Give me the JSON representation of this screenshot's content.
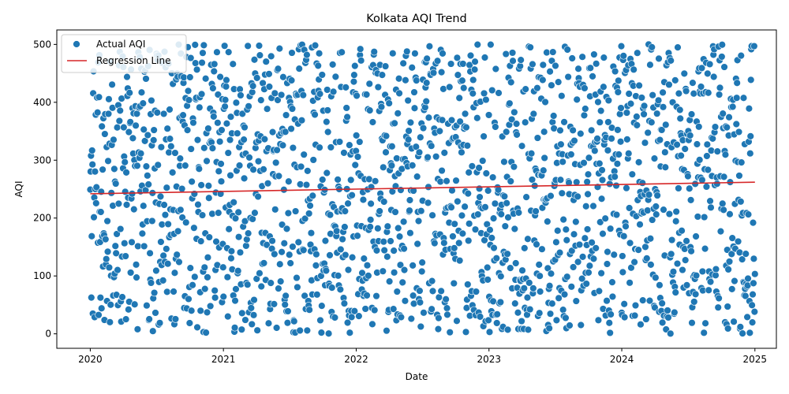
{
  "chart_data": {
    "type": "scatter",
    "title": "Kolkata AQI Trend",
    "xlabel": "Date",
    "ylabel": "AQI",
    "xlim": [
      "2019-10-01",
      "2025-03-01"
    ],
    "ylim": [
      -25,
      525
    ],
    "x_ticks": [
      "2020",
      "2021",
      "2022",
      "2023",
      "2024",
      "2025"
    ],
    "x_tick_dates": [
      "2020-01-01",
      "2021-01-01",
      "2022-01-01",
      "2023-01-01",
      "2024-01-01",
      "2025-01-01"
    ],
    "y_ticks": [
      0,
      100,
      200,
      300,
      400,
      500
    ],
    "grid": false,
    "legend_position": "top-left",
    "series": [
      {
        "name": "Actual AQI",
        "kind": "scatter",
        "color": "#1f77b4",
        "date_range": [
          "2020-01-01",
          "2025-01-01"
        ],
        "point_count": 1827,
        "value_range": [
          0,
          500
        ],
        "sampling": "daily AQI readings, widely scattered between 0 and 500"
      },
      {
        "name": "Regression Line",
        "kind": "line",
        "color": "#d62728",
        "x": [
          "2020-01-01",
          "2025-01-01"
        ],
        "y": [
          242,
          262
        ]
      }
    ]
  }
}
